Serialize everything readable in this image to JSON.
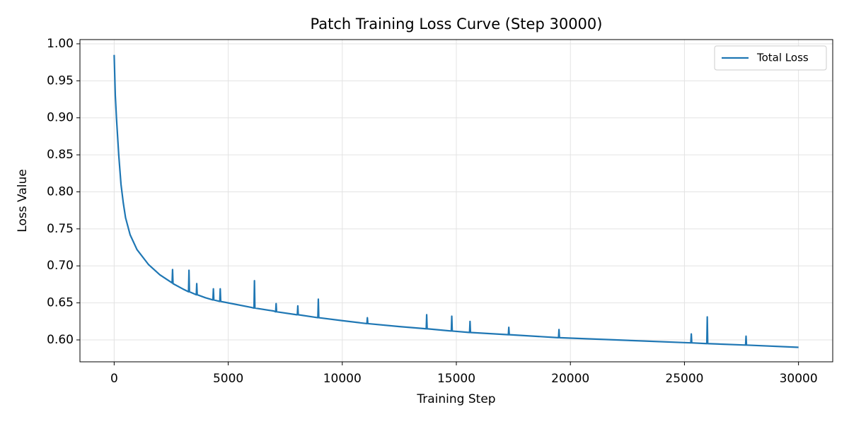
{
  "chart_data": {
    "type": "line",
    "title": "Patch Training Loss Curve (Step 30000)",
    "x_label": "Training Step",
    "y_label": "Loss Value",
    "x": [
      0,
      50,
      100,
      200,
      300,
      400,
      500,
      700,
      1000,
      1500,
      2000,
      2540,
      2560,
      2580,
      3000,
      3260,
      3280,
      3300,
      3600,
      3620,
      3640,
      4000,
      4330,
      4350,
      4370,
      4630,
      4650,
      4670,
      5000,
      6000,
      6130,
      6150,
      6170,
      7000,
      7080,
      7100,
      7120,
      8000,
      8030,
      8050,
      8070,
      8930,
      8950,
      8970,
      10000,
      11080,
      11100,
      11120,
      12500,
      13680,
      13700,
      13720,
      14780,
      14800,
      14820,
      15580,
      15600,
      15620,
      17280,
      17300,
      17320,
      19480,
      19500,
      19520,
      22000,
      25280,
      25300,
      25320,
      25980,
      26000,
      26020,
      27680,
      27700,
      27720,
      30000
    ],
    "series": [
      {
        "name": "Total Loss",
        "color": "#1f77b4",
        "values": [
          0.985,
          0.93,
          0.9,
          0.85,
          0.81,
          0.785,
          0.765,
          0.742,
          0.722,
          0.702,
          0.688,
          0.677,
          0.695,
          0.676,
          0.669,
          0.665,
          0.694,
          0.665,
          0.661,
          0.676,
          0.661,
          0.657,
          0.654,
          0.669,
          0.654,
          0.652,
          0.669,
          0.652,
          0.65,
          0.644,
          0.643,
          0.68,
          0.643,
          0.639,
          0.638,
          0.649,
          0.638,
          0.634,
          0.634,
          0.646,
          0.634,
          0.63,
          0.655,
          0.63,
          0.626,
          0.622,
          0.63,
          0.622,
          0.618,
          0.615,
          0.634,
          0.615,
          0.612,
          0.632,
          0.612,
          0.61,
          0.625,
          0.61,
          0.607,
          0.617,
          0.607,
          0.603,
          0.614,
          0.603,
          0.6,
          0.596,
          0.608,
          0.596,
          0.595,
          0.631,
          0.595,
          0.593,
          0.605,
          0.593,
          0.59
        ]
      }
    ],
    "xlim": [
      -1500,
      31500
    ],
    "ylim": [
      0.5704,
      1.0057
    ],
    "xticks": [
      0,
      5000,
      10000,
      15000,
      20000,
      25000,
      30000
    ],
    "yticks": [
      {
        "value": 0.6,
        "label": "0.60"
      },
      0.65,
      {
        "value": 0.7,
        "label": "0.70"
      },
      0.75,
      {
        "value": 0.8,
        "label": "0.80"
      },
      0.85,
      {
        "value": 0.9,
        "label": "0.90"
      },
      0.95,
      {
        "value": 1.0,
        "label": "1.00"
      }
    ],
    "grid": true,
    "legend": "upper right"
  }
}
